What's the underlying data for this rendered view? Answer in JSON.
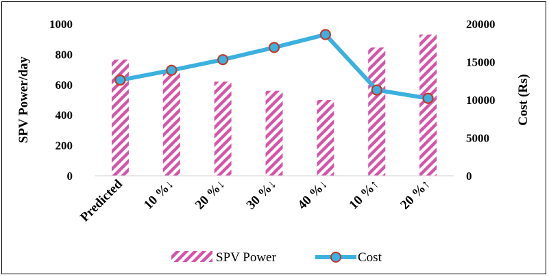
{
  "chart_data": {
    "type": "bar",
    "categories": [
      "Predicted",
      "10 %↓",
      "20 %↓",
      "30 %↓",
      "40 %↓",
      "10 %↑",
      "20 %↑"
    ],
    "series": [
      {
        "name": "SPV Power",
        "type": "bar",
        "axis": "left",
        "values": [
          765,
          700,
          620,
          560,
          500,
          845,
          930
        ]
      },
      {
        "name": "Cost",
        "type": "line",
        "axis": "right",
        "values": [
          12600,
          13900,
          15300,
          16900,
          18600,
          11300,
          10200
        ]
      }
    ],
    "ylabel": "SPV Power/day",
    "y2label": "Cost (Rs)",
    "ylim": [
      0,
      1000
    ],
    "y2lim": [
      0,
      20000
    ],
    "yticks": [
      "0",
      "200",
      "400",
      "600",
      "800",
      "1000"
    ],
    "y2ticks": [
      "0",
      "5000",
      "10000",
      "15000",
      "20000"
    ],
    "grid": false,
    "legend_position": "bottom"
  },
  "colors": {
    "bar": "#d654a8",
    "line": "#3cb0de",
    "marker_fill": "#3cb0de",
    "marker_edge": "#c03a2b"
  }
}
